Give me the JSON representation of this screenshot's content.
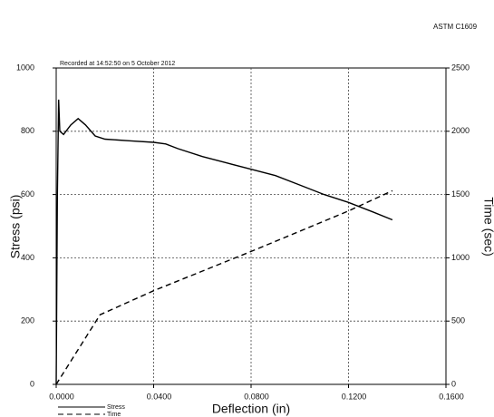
{
  "chart_data": {
    "type": "line",
    "title": "ASTM C1609",
    "subtitle": "Recorded at 14:52:50 on 5 October 2012",
    "x_label": "Deflection (in)",
    "y_label": "Stress (psi)",
    "y2_label": "Time (sec)",
    "xlim": [
      0,
      0.16
    ],
    "xticks": [
      {
        "value": 0,
        "label": "0.0000"
      },
      {
        "value": 0.04,
        "label": "0.0400"
      },
      {
        "value": 0.08,
        "label": "0.0800"
      },
      {
        "value": 0.12,
        "label": "0.1200"
      },
      {
        "value": 0.16,
        "label": "0.1600"
      }
    ],
    "ylim": [
      0,
      1000
    ],
    "yticks": [
      0,
      200,
      400,
      600,
      800,
      1000
    ],
    "y2lim": [
      0,
      2500
    ],
    "y2ticks": [
      0,
      500,
      1000,
      1500,
      2000,
      2500
    ],
    "grid": true,
    "legend": "bottom-left",
    "series": [
      {
        "name": "Stress",
        "color": "#000000",
        "dash": false,
        "x": [
          0,
          0.0005,
          0.001,
          0.0015,
          0.003,
          0.006,
          0.009,
          0.012,
          0.016,
          0.02,
          0.03,
          0.04,
          0.045,
          0.05,
          0.06,
          0.07,
          0.08,
          0.09,
          0.1,
          0.11,
          0.12,
          0.13,
          0.138
        ],
        "values": [
          0,
          600,
          900,
          800,
          790,
          820,
          840,
          820,
          785,
          775,
          770,
          765,
          760,
          745,
          720,
          700,
          680,
          660,
          630,
          600,
          575,
          545,
          520
        ]
      },
      {
        "name": "Time",
        "color": "#000000",
        "dash": true,
        "axis": "y2",
        "x": [
          0,
          0.018,
          0.04,
          0.08,
          0.12,
          0.138
        ],
        "values": [
          0,
          550,
          740,
          1050,
          1370,
          1530
        ]
      }
    ]
  }
}
